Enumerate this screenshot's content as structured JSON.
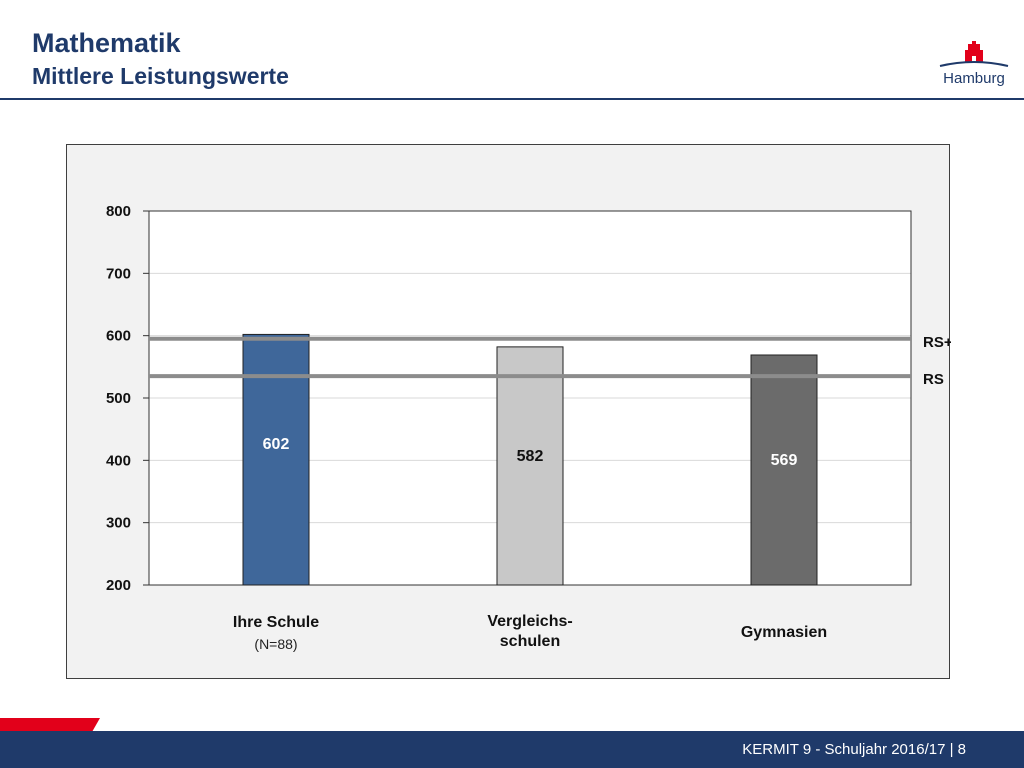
{
  "header": {
    "title": "Mathematik",
    "subtitle": "Mittlere Leistungswerte"
  },
  "logo": {
    "text": "Hamburg",
    "icon": "hamburg-castle-icon"
  },
  "footer": {
    "text": "KERMIT 9 - Schuljahr 2016/17 | 8"
  },
  "colors": {
    "brand_blue": "#1f3a6a",
    "brand_red": "#e2001a",
    "bar_ihre_schule": "#3f679a",
    "bar_vergleichsschulen": "#c8c8c8",
    "bar_gymnasien": "#6b6b6b",
    "reference_line": "#8c8c8c"
  },
  "chart_data": {
    "type": "bar",
    "categories": [
      "Ihre Schule",
      "Vergleichs-\nschulen",
      "Gymnasien"
    ],
    "category_sublabels": [
      "(N=88)",
      "",
      ""
    ],
    "values": [
      602,
      582,
      569
    ],
    "value_labels": [
      "602",
      "582",
      "569"
    ],
    "ylim": [
      200,
      800
    ],
    "yticks": [
      200,
      300,
      400,
      500,
      600,
      700,
      800
    ],
    "ytick_labels": [
      "200",
      "300",
      "400",
      "500",
      "600",
      "700",
      "800"
    ],
    "grid": true,
    "reference_lines": [
      {
        "label": "RS+",
        "value": 595
      },
      {
        "label": "RS",
        "value": 535
      }
    ],
    "title": "",
    "xlabel": "",
    "ylabel": ""
  }
}
